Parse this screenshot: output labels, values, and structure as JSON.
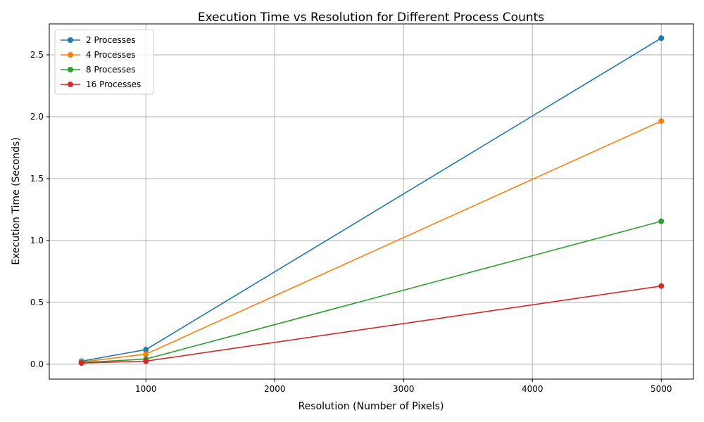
{
  "chart_data": {
    "type": "line",
    "title": "Execution Time vs Resolution for Different Process Counts",
    "xlabel": "Resolution (Number of Pixels)",
    "ylabel": "Execution Time (Seconds)",
    "xlim": [
      250,
      5250
    ],
    "ylim": [
      -0.12,
      2.75
    ],
    "xticks": [
      1000,
      2000,
      3000,
      4000,
      5000
    ],
    "yticks": [
      0.0,
      0.5,
      1.0,
      1.5,
      2.0,
      2.5
    ],
    "xtick_labels": [
      "1000",
      "2000",
      "3000",
      "4000",
      "5000"
    ],
    "ytick_labels": [
      "0.0",
      "0.5",
      "1.0",
      "1.5",
      "2.0",
      "2.5"
    ],
    "grid": true,
    "legend_position": "top-left",
    "x": [
      500,
      1000,
      5000
    ],
    "series": [
      {
        "name": "2 Processes",
        "color": "#1f77b4",
        "values": [
          0.025,
          0.118,
          2.635
        ]
      },
      {
        "name": "4 Processes",
        "color": "#ff7f0e",
        "values": [
          0.018,
          0.082,
          1.965
        ]
      },
      {
        "name": "8 Processes",
        "color": "#2ca02c",
        "values": [
          0.013,
          0.042,
          1.155
        ]
      },
      {
        "name": "16 Processes",
        "color": "#d62728",
        "values": [
          0.01,
          0.025,
          0.632
        ]
      }
    ]
  }
}
